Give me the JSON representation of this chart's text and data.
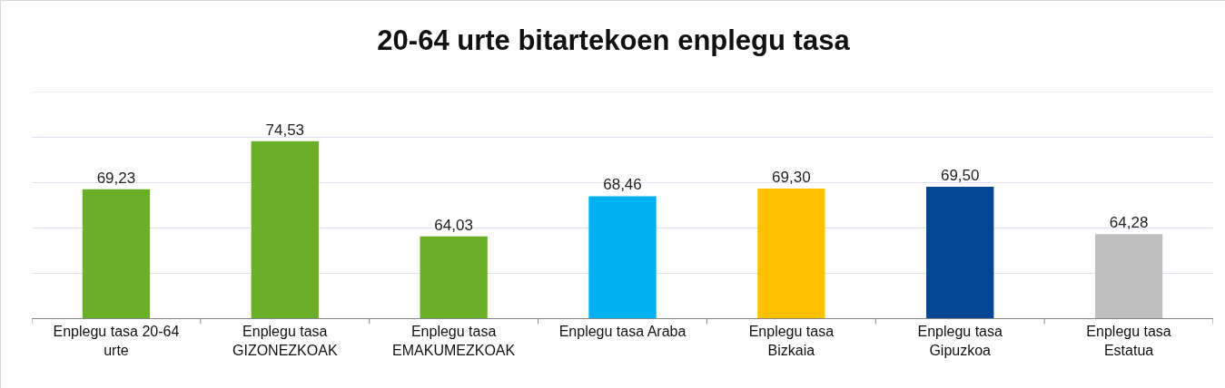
{
  "chart_data": {
    "type": "bar",
    "title": "20-64 urte bitartekoen enplegu tasa",
    "categories": [
      "Enplegu tasa 20-64 urte",
      "Enplegu tasa GIZONEZKOAK",
      "Enplegu tasa EMAKUMEZKOAK",
      "Enplegu tasa Araba",
      "Enplegu tasa Bizkaia",
      "Enplegu tasa Gipuzkoa",
      "Enplegu tasa Estatua"
    ],
    "values": [
      69.23,
      74.53,
      64.03,
      68.46,
      69.3,
      69.5,
      64.28
    ],
    "value_labels": [
      "69,23",
      "74,53",
      "64,03",
      "68,46",
      "69,30",
      "69,50",
      "64,28"
    ],
    "colors": [
      "#6aaf27",
      "#6aaf27",
      "#6aaf27",
      "#00b0f0",
      "#ffc000",
      "#034694",
      "#bfbfbf"
    ],
    "ylim": [
      55,
      80
    ],
    "yticks": [
      {
        "value": 55,
        "label": null
      },
      {
        "value": 60,
        "label": null
      },
      {
        "value": 65,
        "label": null
      },
      {
        "value": 70,
        "label": null
      },
      {
        "value": 75,
        "label": null
      },
      {
        "value": 80,
        "label": null
      }
    ],
    "grid": "y",
    "tick_labels": "x"
  }
}
